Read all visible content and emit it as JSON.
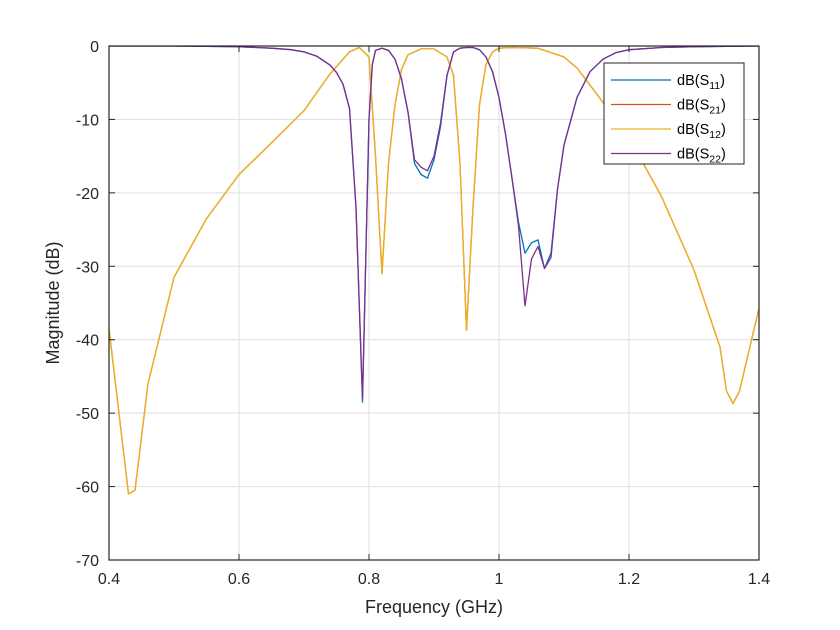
{
  "chart_data": {
    "type": "line",
    "title": "",
    "xlabel": "Frequency (GHz)",
    "ylabel": "Magnitude (dB)",
    "xlim": [
      0.4,
      1.4
    ],
    "ylim": [
      -70,
      0
    ],
    "xticks": [
      0.4,
      0.6,
      0.8,
      1,
      1.2,
      1.4
    ],
    "xtick_labels": [
      "0.4",
      "0.6",
      "0.8",
      "1",
      "1.2",
      "1.4"
    ],
    "yticks": [
      0,
      -10,
      -20,
      -30,
      -40,
      -50,
      -60,
      -70
    ],
    "ytick_labels": [
      "0",
      "-10",
      "-20",
      "-30",
      "-40",
      "-50",
      "-60",
      "-70"
    ],
    "grid": true,
    "legend_position": "northeast",
    "series": [
      {
        "name": "dB(S11)",
        "label_main": "dB(S",
        "label_sub": "11",
        "color": "#0072BD",
        "x": [
          0.4,
          0.5,
          0.6,
          0.65,
          0.68,
          0.7,
          0.72,
          0.74,
          0.75,
          0.76,
          0.77,
          0.78,
          0.79,
          0.8,
          0.805,
          0.81,
          0.82,
          0.83,
          0.84,
          0.85,
          0.86,
          0.87,
          0.88,
          0.89,
          0.9,
          0.91,
          0.92,
          0.93,
          0.94,
          0.95,
          0.96,
          0.97,
          0.98,
          0.99,
          1.0,
          1.01,
          1.02,
          1.03,
          1.04,
          1.05,
          1.06,
          1.07,
          1.08,
          1.09,
          1.1,
          1.12,
          1.14,
          1.16,
          1.18,
          1.2,
          1.25,
          1.3,
          1.4
        ],
        "y": [
          0,
          0,
          -0.1,
          -0.3,
          -0.5,
          -0.8,
          -1.4,
          -2.6,
          -3.6,
          -5.2,
          -8.5,
          -22,
          -48.5,
          -10,
          -2.5,
          -0.6,
          -0.3,
          -0.6,
          -1.8,
          -4.5,
          -9,
          -16,
          -17.5,
          -18,
          -15.5,
          -11,
          -4,
          -0.8,
          -0.3,
          -0.2,
          -0.2,
          -0.5,
          -1.5,
          -3.5,
          -7,
          -12,
          -18,
          -24,
          -28.2,
          -26.8,
          -26.4,
          -30.3,
          -28.2,
          -19.5,
          -13.5,
          -7,
          -3.5,
          -1.8,
          -0.9,
          -0.5,
          -0.2,
          -0.1,
          0
        ]
      },
      {
        "name": "dB(S21)",
        "label_main": "dB(S",
        "label_sub": "21",
        "color": "#D95319",
        "x": [
          0.4,
          0.43,
          0.44,
          0.46,
          0.5,
          0.55,
          0.6,
          0.65,
          0.7,
          0.74,
          0.77,
          0.785,
          0.8,
          0.81,
          0.82,
          0.83,
          0.84,
          0.85,
          0.86,
          0.88,
          0.9,
          0.92,
          0.93,
          0.94,
          0.95,
          0.96,
          0.97,
          0.98,
          0.99,
          1.0,
          1.02,
          1.06,
          1.1,
          1.12,
          1.15,
          1.2,
          1.25,
          1.3,
          1.34,
          1.35,
          1.36,
          1.37,
          1.4
        ],
        "y": [
          -38.5,
          -61,
          -60.5,
          -46,
          -31.5,
          -23.5,
          -17.5,
          -13.2,
          -8.8,
          -3.8,
          -0.8,
          -0.2,
          -1.5,
          -15,
          -31,
          -16,
          -8,
          -3.2,
          -1.2,
          -0.4,
          -0.4,
          -1.5,
          -4,
          -16,
          -38.7,
          -22,
          -8,
          -2.5,
          -0.8,
          -0.3,
          -0.2,
          -0.3,
          -1.5,
          -3,
          -6.5,
          -12.5,
          -20.5,
          -30.5,
          -41,
          -47,
          -48.7,
          -47,
          -35.7
        ]
      },
      {
        "name": "dB(S12)",
        "label_main": "dB(S",
        "label_sub": "12",
        "color": "#EDB120",
        "x": [
          0.4,
          0.43,
          0.44,
          0.46,
          0.5,
          0.55,
          0.6,
          0.65,
          0.7,
          0.74,
          0.77,
          0.785,
          0.8,
          0.81,
          0.82,
          0.83,
          0.84,
          0.85,
          0.86,
          0.88,
          0.9,
          0.92,
          0.93,
          0.94,
          0.95,
          0.96,
          0.97,
          0.98,
          0.99,
          1.0,
          1.02,
          1.06,
          1.1,
          1.12,
          1.15,
          1.2,
          1.25,
          1.3,
          1.34,
          1.35,
          1.36,
          1.37,
          1.4
        ],
        "y": [
          -38.5,
          -61,
          -60.5,
          -46,
          -31.5,
          -23.5,
          -17.5,
          -13.2,
          -8.8,
          -3.8,
          -0.8,
          -0.2,
          -1.5,
          -15,
          -31,
          -16,
          -8,
          -3.2,
          -1.2,
          -0.4,
          -0.4,
          -1.5,
          -4,
          -16,
          -38.7,
          -22,
          -8,
          -2.5,
          -0.8,
          -0.3,
          -0.2,
          -0.3,
          -1.5,
          -3,
          -6.5,
          -12.5,
          -20.5,
          -30.5,
          -41,
          -47,
          -48.7,
          -47,
          -35.7
        ]
      },
      {
        "name": "dB(S22)",
        "label_main": "dB(S",
        "label_sub": "22",
        "color": "#7E2F8E",
        "x": [
          0.4,
          0.5,
          0.6,
          0.65,
          0.68,
          0.7,
          0.72,
          0.74,
          0.75,
          0.76,
          0.77,
          0.78,
          0.79,
          0.8,
          0.805,
          0.81,
          0.82,
          0.83,
          0.84,
          0.85,
          0.86,
          0.87,
          0.88,
          0.89,
          0.9,
          0.91,
          0.92,
          0.93,
          0.94,
          0.95,
          0.96,
          0.97,
          0.98,
          0.99,
          1.0,
          1.01,
          1.02,
          1.03,
          1.04,
          1.05,
          1.06,
          1.07,
          1.08,
          1.09,
          1.1,
          1.12,
          1.14,
          1.16,
          1.18,
          1.2,
          1.25,
          1.3,
          1.4
        ],
        "y": [
          0,
          0,
          -0.1,
          -0.3,
          -0.5,
          -0.8,
          -1.4,
          -2.6,
          -3.6,
          -5.2,
          -8.5,
          -22,
          -48,
          -10,
          -2.5,
          -0.6,
          -0.3,
          -0.6,
          -1.8,
          -4.5,
          -9,
          -15.5,
          -16.5,
          -17,
          -15,
          -10.5,
          -4,
          -0.8,
          -0.3,
          -0.2,
          -0.2,
          -0.5,
          -1.5,
          -3.5,
          -7,
          -12,
          -18,
          -24.5,
          -35.4,
          -29,
          -27.3,
          -30.3,
          -28.8,
          -19.5,
          -13.5,
          -7,
          -3.5,
          -1.8,
          -0.9,
          -0.5,
          -0.2,
          -0.1,
          0
        ]
      }
    ]
  },
  "axes": {
    "xlabel": "Frequency (GHz)",
    "ylabel": "Magnitude (dB)"
  },
  "legend": {
    "items": [
      {
        "main": "dB(S",
        "sub": "11",
        "close": ")",
        "color": "#0072BD"
      },
      {
        "main": "dB(S",
        "sub": "21",
        "close": ")",
        "color": "#D95319"
      },
      {
        "main": "dB(S",
        "sub": "12",
        "close": ")",
        "color": "#EDB120"
      },
      {
        "main": "dB(S",
        "sub": "22",
        "close": ")",
        "color": "#7E2F8E"
      }
    ]
  }
}
